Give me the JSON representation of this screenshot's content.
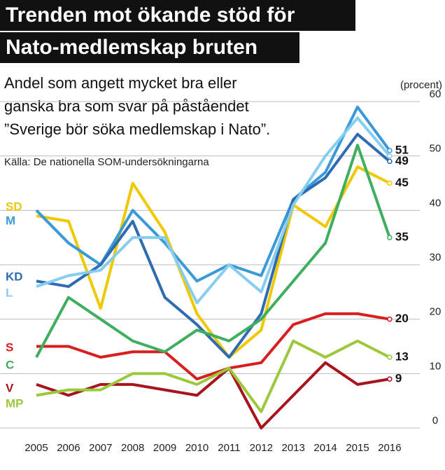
{
  "chart_data": {
    "type": "line",
    "title": [
      "Trenden mot ökande stöd för",
      "Nato-medlemskap bruten"
    ],
    "subtitle": [
      "Andel som angett mycket bra eller",
      "ganska bra som svar på påståendet",
      "”Sverige bör söka medlemskap i Nato”."
    ],
    "source": "Källa: De nationella SOM-undersökningarna",
    "y_label": "(procent)",
    "categories": [
      "2005",
      "2006",
      "2007",
      "2008",
      "2009",
      "2010",
      "2011",
      "2012",
      "2013",
      "2014",
      "2015",
      "2016"
    ],
    "ylim": [
      0,
      60
    ],
    "yticks": [
      0,
      10,
      20,
      30,
      40,
      50,
      60
    ],
    "grid": true,
    "series": [
      {
        "name": "SD",
        "color": "#f0c800",
        "end_label": true,
        "values": [
          39,
          38,
          22,
          45,
          36,
          21,
          13,
          18,
          41,
          37,
          48,
          45
        ]
      },
      {
        "name": "M",
        "color": "#3a9ad8",
        "end_label": true,
        "values": [
          40,
          34,
          30,
          40,
          34,
          27,
          30,
          28,
          42,
          47,
          59,
          51
        ]
      },
      {
        "name": "KD",
        "color": "#2d6cb2",
        "end_label": true,
        "values": [
          27,
          26,
          30,
          38,
          24,
          19,
          13,
          21,
          42,
          46,
          54,
          49
        ]
      },
      {
        "name": "L",
        "color": "#86cdf0",
        "end_label": false,
        "values": [
          26,
          28,
          29,
          35,
          35,
          23,
          30,
          25,
          41,
          50,
          57,
          50
        ]
      },
      {
        "name": "S",
        "color": "#d81e1e",
        "end_label": true,
        "values": [
          15,
          15,
          13,
          14,
          14,
          9,
          11,
          12,
          19,
          21,
          21,
          20
        ]
      },
      {
        "name": "C",
        "color": "#3fae5e",
        "end_label": true,
        "values": [
          13,
          24,
          20,
          16,
          14,
          18,
          16,
          20,
          27,
          34,
          52,
          35
        ]
      },
      {
        "name": "V",
        "color": "#a8141e",
        "end_label": true,
        "values": [
          8,
          6,
          8,
          8,
          7,
          6,
          11,
          0,
          6,
          12,
          8,
          9
        ]
      },
      {
        "name": "MP",
        "color": "#9cc83c",
        "end_label": true,
        "values": [
          6,
          7,
          7,
          10,
          10,
          8,
          11,
          3,
          16,
          13,
          16,
          13
        ]
      }
    ]
  }
}
